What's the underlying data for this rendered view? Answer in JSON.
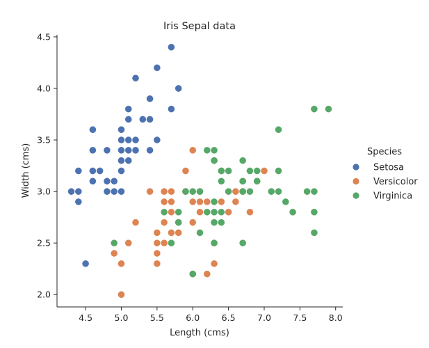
{
  "chart_data": {
    "type": "scatter",
    "title": "Iris Sepal data",
    "xlabel": "Length (cms)",
    "ylabel": "Width (cms)",
    "xlim": [
      4.1,
      8.1
    ],
    "ylim": [
      1.88,
      4.52
    ],
    "xticks": [
      "4.5",
      "5.0",
      "5.5",
      "6.0",
      "6.5",
      "7.0",
      "7.5",
      "8.0"
    ],
    "yticks": [
      "2.0",
      "2.5",
      "3.0",
      "3.5",
      "4.0",
      "4.5"
    ],
    "grid": false,
    "legend": {
      "title": "Species",
      "placement": "right"
    },
    "series": [
      {
        "name": "Setosa",
        "color": "#4c72b0",
        "points": [
          [
            4.3,
            3.0
          ],
          [
            4.4,
            2.9
          ],
          [
            4.4,
            3.0
          ],
          [
            4.4,
            3.2
          ],
          [
            4.5,
            2.3
          ],
          [
            4.6,
            3.1
          ],
          [
            4.6,
            3.2
          ],
          [
            4.6,
            3.4
          ],
          [
            4.6,
            3.6
          ],
          [
            4.7,
            3.2
          ],
          [
            4.8,
            3.0
          ],
          [
            4.8,
            3.1
          ],
          [
            4.8,
            3.4
          ],
          [
            4.9,
            3.0
          ],
          [
            4.9,
            3.1
          ],
          [
            5.0,
            3.0
          ],
          [
            5.0,
            3.2
          ],
          [
            5.0,
            3.3
          ],
          [
            5.0,
            3.4
          ],
          [
            5.0,
            3.5
          ],
          [
            5.0,
            3.6
          ],
          [
            5.1,
            3.3
          ],
          [
            5.1,
            3.4
          ],
          [
            5.1,
            3.5
          ],
          [
            5.1,
            3.7
          ],
          [
            5.1,
            3.8
          ],
          [
            5.2,
            3.4
          ],
          [
            5.2,
            3.5
          ],
          [
            5.2,
            4.1
          ],
          [
            5.3,
            3.7
          ],
          [
            5.4,
            3.4
          ],
          [
            5.4,
            3.7
          ],
          [
            5.4,
            3.9
          ],
          [
            5.5,
            3.5
          ],
          [
            5.5,
            4.2
          ],
          [
            5.7,
            3.8
          ],
          [
            5.7,
            4.4
          ],
          [
            5.8,
            4.0
          ]
        ]
      },
      {
        "name": "Versicolor",
        "color": "#dd8452",
        "points": [
          [
            4.9,
            2.4
          ],
          [
            5.0,
            2.0
          ],
          [
            5.0,
            2.3
          ],
          [
            5.1,
            2.5
          ],
          [
            5.2,
            2.7
          ],
          [
            5.4,
            3.0
          ],
          [
            5.5,
            2.3
          ],
          [
            5.5,
            2.4
          ],
          [
            5.5,
            2.5
          ],
          [
            5.5,
            2.6
          ],
          [
            5.6,
            2.5
          ],
          [
            5.6,
            2.7
          ],
          [
            5.6,
            2.9
          ],
          [
            5.6,
            3.0
          ],
          [
            5.7,
            2.6
          ],
          [
            5.7,
            2.8
          ],
          [
            5.7,
            2.9
          ],
          [
            5.7,
            3.0
          ],
          [
            5.8,
            2.6
          ],
          [
            5.8,
            2.7
          ],
          [
            5.9,
            3.0
          ],
          [
            5.9,
            3.2
          ],
          [
            6.0,
            2.2
          ],
          [
            6.0,
            2.7
          ],
          [
            6.0,
            2.9
          ],
          [
            6.0,
            3.4
          ],
          [
            6.1,
            2.8
          ],
          [
            6.1,
            2.9
          ],
          [
            6.1,
            3.0
          ],
          [
            6.2,
            2.2
          ],
          [
            6.2,
            2.9
          ],
          [
            6.3,
            2.3
          ],
          [
            6.3,
            2.5
          ],
          [
            6.3,
            3.3
          ],
          [
            6.4,
            2.9
          ],
          [
            6.4,
            3.2
          ],
          [
            6.5,
            2.8
          ],
          [
            6.6,
            2.9
          ],
          [
            6.6,
            3.0
          ],
          [
            6.7,
            3.0
          ],
          [
            6.7,
            3.1
          ],
          [
            6.8,
            2.8
          ],
          [
            6.9,
            3.1
          ],
          [
            7.0,
            3.2
          ]
        ]
      },
      {
        "name": "Virginica",
        "color": "#55a868",
        "points": [
          [
            4.9,
            2.5
          ],
          [
            5.6,
            2.8
          ],
          [
            5.7,
            2.5
          ],
          [
            5.8,
            2.7
          ],
          [
            5.8,
            2.8
          ],
          [
            5.9,
            3.0
          ],
          [
            6.0,
            2.2
          ],
          [
            6.0,
            3.0
          ],
          [
            6.1,
            2.6
          ],
          [
            6.1,
            3.0
          ],
          [
            6.2,
            2.8
          ],
          [
            6.2,
            3.4
          ],
          [
            6.3,
            2.5
          ],
          [
            6.3,
            2.7
          ],
          [
            6.3,
            2.8
          ],
          [
            6.3,
            2.9
          ],
          [
            6.3,
            3.3
          ],
          [
            6.3,
            3.4
          ],
          [
            6.4,
            2.7
          ],
          [
            6.4,
            2.8
          ],
          [
            6.4,
            3.1
          ],
          [
            6.4,
            3.2
          ],
          [
            6.5,
            3.0
          ],
          [
            6.5,
            3.2
          ],
          [
            6.7,
            2.5
          ],
          [
            6.7,
            3.0
          ],
          [
            6.7,
            3.1
          ],
          [
            6.7,
            3.3
          ],
          [
            6.8,
            3.0
          ],
          [
            6.8,
            3.2
          ],
          [
            6.9,
            3.1
          ],
          [
            6.9,
            3.2
          ],
          [
            7.1,
            3.0
          ],
          [
            7.2,
            3.0
          ],
          [
            7.2,
            3.2
          ],
          [
            7.2,
            3.6
          ],
          [
            7.3,
            2.9
          ],
          [
            7.4,
            2.8
          ],
          [
            7.6,
            3.0
          ],
          [
            7.7,
            2.6
          ],
          [
            7.7,
            2.8
          ],
          [
            7.7,
            3.0
          ],
          [
            7.7,
            3.8
          ],
          [
            7.9,
            3.8
          ]
        ]
      }
    ]
  }
}
